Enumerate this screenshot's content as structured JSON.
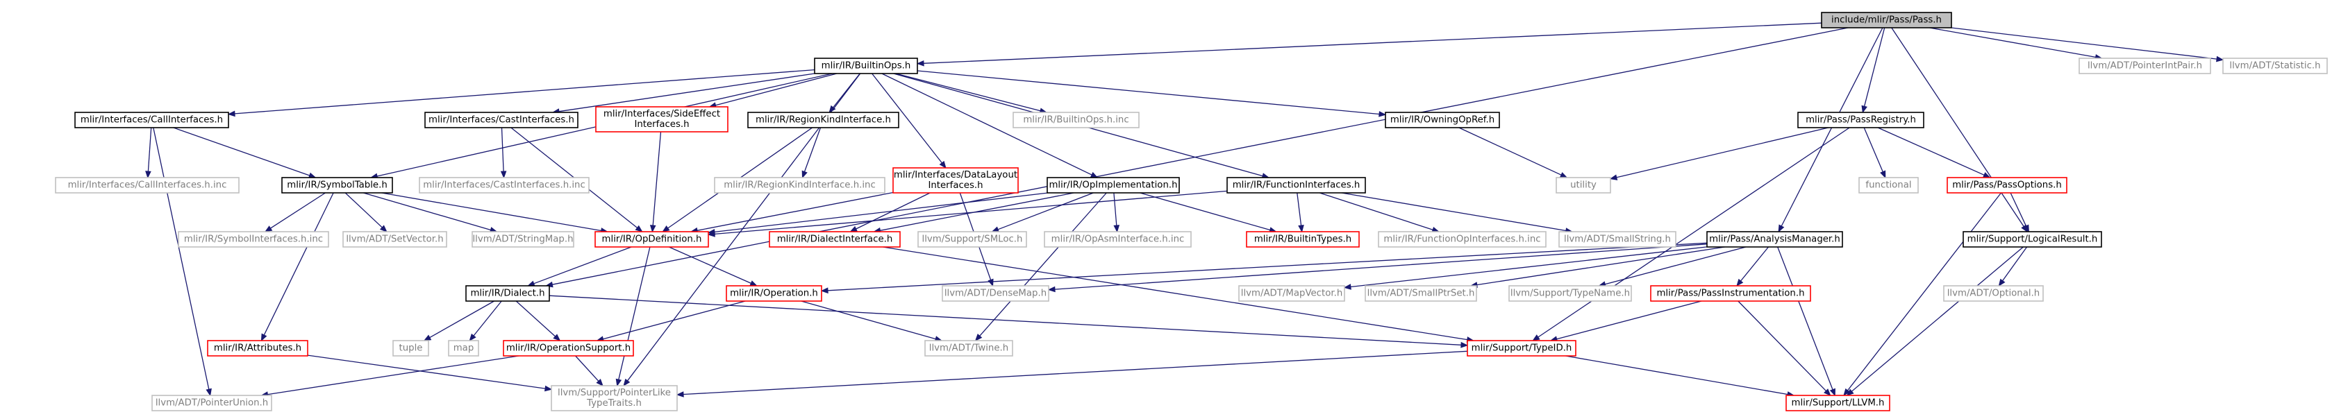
{
  "title": "include/mlir/Pass/Pass.h",
  "colors": {
    "edge": "#191970",
    "black": "#000000",
    "red": "#ff0000",
    "gray": "#bfbfbf",
    "root_fill": "#bfbfbf"
  },
  "nodes": [
    {
      "id": "pass",
      "label": "include/mlir/Pass/Pass.h",
      "style": "root"
    },
    {
      "id": "builtinops",
      "label": "mlir/IR/BuiltinOps.h",
      "style": "black"
    },
    {
      "id": "pointerintpair",
      "label": "llvm/ADT/PointerIntPair.h",
      "style": "gray"
    },
    {
      "id": "statistic",
      "label": "llvm/ADT/Statistic.h",
      "style": "gray"
    },
    {
      "id": "callinterfaces",
      "label": "mlir/Interfaces/CallInterfaces.h",
      "style": "black"
    },
    {
      "id": "castinterfaces",
      "label": "mlir/Interfaces/CastInterfaces.h",
      "style": "black"
    },
    {
      "id": "sideeffect",
      "label": "mlir/Interfaces/SideEffect\nInterfaces.h",
      "style": "red"
    },
    {
      "id": "regionkind",
      "label": "mlir/IR/RegionKindInterface.h",
      "style": "black"
    },
    {
      "id": "builtinopsinc",
      "label": "mlir/IR/BuiltinOps.h.inc",
      "style": "gray"
    },
    {
      "id": "owningopref",
      "label": "mlir/IR/OwningOpRef.h",
      "style": "black"
    },
    {
      "id": "passregistry",
      "label": "mlir/Pass/PassRegistry.h",
      "style": "black"
    },
    {
      "id": "callinterfacesinc",
      "label": "mlir/Interfaces/CallInterfaces.h.inc",
      "style": "gray"
    },
    {
      "id": "symboltable",
      "label": "mlir/IR/SymbolTable.h",
      "style": "black"
    },
    {
      "id": "castinterfacesinc",
      "label": "mlir/Interfaces/CastInterfaces.h.inc",
      "style": "gray"
    },
    {
      "id": "regionkindinc",
      "label": "mlir/IR/RegionKindInterface.h.inc",
      "style": "gray"
    },
    {
      "id": "datalayout",
      "label": "mlir/Interfaces/DataLayout\nInterfaces.h",
      "style": "red"
    },
    {
      "id": "opimplementation",
      "label": "mlir/IR/OpImplementation.h",
      "style": "black"
    },
    {
      "id": "functioninterfaces",
      "label": "mlir/IR/FunctionInterfaces.h",
      "style": "black"
    },
    {
      "id": "utility",
      "label": "utility",
      "style": "gray"
    },
    {
      "id": "functional",
      "label": "functional",
      "style": "gray"
    },
    {
      "id": "passoptions",
      "label": "mlir/Pass/PassOptions.h",
      "style": "red"
    },
    {
      "id": "symbolinterfacesinc",
      "label": "mlir/IR/SymbolInterfaces.h.inc",
      "style": "gray"
    },
    {
      "id": "setvector",
      "label": "llvm/ADT/SetVector.h",
      "style": "gray"
    },
    {
      "id": "stringmap",
      "label": "llvm/ADT/StringMap.h",
      "style": "gray"
    },
    {
      "id": "opdefinition",
      "label": "mlir/IR/OpDefinition.h",
      "style": "red"
    },
    {
      "id": "dialectinterface",
      "label": "mlir/IR/DialectInterface.h",
      "style": "red"
    },
    {
      "id": "smloc",
      "label": "llvm/Support/SMLoc.h",
      "style": "gray"
    },
    {
      "id": "opasminterfaceinc",
      "label": "mlir/IR/OpAsmInterface.h.inc",
      "style": "gray"
    },
    {
      "id": "builtintypes",
      "label": "mlir/IR/BuiltinTypes.h",
      "style": "red"
    },
    {
      "id": "functionopinterfacesinc",
      "label": "mlir/IR/FunctionOpInterfaces.h.inc",
      "style": "gray"
    },
    {
      "id": "smallstring",
      "label": "llvm/ADT/SmallString.h",
      "style": "gray"
    },
    {
      "id": "analysismanager",
      "label": "mlir/Pass/AnalysisManager.h",
      "style": "black"
    },
    {
      "id": "logicalresult",
      "label": "mlir/Support/LogicalResult.h",
      "style": "black"
    },
    {
      "id": "dialect",
      "label": "mlir/IR/Dialect.h",
      "style": "black"
    },
    {
      "id": "operation",
      "label": "mlir/IR/Operation.h",
      "style": "red"
    },
    {
      "id": "densemap",
      "label": "llvm/ADT/DenseMap.h",
      "style": "gray"
    },
    {
      "id": "mapvector",
      "label": "llvm/ADT/MapVector.h",
      "style": "gray"
    },
    {
      "id": "smallptrset",
      "label": "llvm/ADT/SmallPtrSet.h",
      "style": "gray"
    },
    {
      "id": "typename",
      "label": "llvm/Support/TypeName.h",
      "style": "gray"
    },
    {
      "id": "passinstrumentation",
      "label": "mlir/Pass/PassInstrumentation.h",
      "style": "red"
    },
    {
      "id": "optional",
      "label": "llvm/ADT/Optional.h",
      "style": "gray"
    },
    {
      "id": "tuple",
      "label": "tuple",
      "style": "gray"
    },
    {
      "id": "map",
      "label": "map",
      "style": "gray"
    },
    {
      "id": "attributes",
      "label": "mlir/IR/Attributes.h",
      "style": "red"
    },
    {
      "id": "operationsupport",
      "label": "mlir/IR/OperationSupport.h",
      "style": "red"
    },
    {
      "id": "twine",
      "label": "llvm/ADT/Twine.h",
      "style": "gray"
    },
    {
      "id": "typeid",
      "label": "mlir/Support/TypeID.h",
      "style": "red"
    },
    {
      "id": "llvm",
      "label": "mlir/Support/LLVM.h",
      "style": "red"
    },
    {
      "id": "pointerunion",
      "label": "llvm/ADT/PointerUnion.h",
      "style": "gray"
    },
    {
      "id": "pointerliketypetraits",
      "label": "llvm/Support/PointerLike\nTypeTraits.h",
      "style": "gray"
    }
  ],
  "edges": [
    [
      "pass",
      "builtinops"
    ],
    [
      "pass",
      "pointerintpair"
    ],
    [
      "pass",
      "statistic"
    ],
    [
      "pass",
      "passregistry"
    ],
    [
      "pass",
      "analysismanager"
    ],
    [
      "pass",
      "logicalresult"
    ],
    [
      "pass",
      "dialect"
    ],
    [
      "builtinops",
      "callinterfaces"
    ],
    [
      "builtinops",
      "castinterfaces"
    ],
    [
      "builtinops",
      "sideeffect"
    ],
    [
      "builtinops",
      "regionkind"
    ],
    [
      "builtinops",
      "builtinopsinc"
    ],
    [
      "builtinops",
      "owningopref"
    ],
    [
      "builtinops",
      "symboltable"
    ],
    [
      "builtinops",
      "datalayout"
    ],
    [
      "builtinops",
      "opimplementation"
    ],
    [
      "builtinops",
      "functioninterfaces"
    ],
    [
      "builtinops",
      "pointerliketypetraits"
    ],
    [
      "callinterfaces",
      "callinterfacesinc"
    ],
    [
      "callinterfaces",
      "symboltable"
    ],
    [
      "callinterfaces",
      "pointerunion"
    ],
    [
      "castinterfaces",
      "castinterfacesinc"
    ],
    [
      "castinterfaces",
      "opdefinition"
    ],
    [
      "sideeffect",
      "opdefinition"
    ],
    [
      "regionkind",
      "regionkindinc"
    ],
    [
      "regionkind",
      "opdefinition"
    ],
    [
      "owningopref",
      "utility"
    ],
    [
      "passregistry",
      "utility"
    ],
    [
      "passregistry",
      "functional"
    ],
    [
      "passregistry",
      "passoptions"
    ],
    [
      "passregistry",
      "typeid"
    ],
    [
      "symboltable",
      "symbolinterfacesinc"
    ],
    [
      "symboltable",
      "setvector"
    ],
    [
      "symboltable",
      "stringmap"
    ],
    [
      "symboltable",
      "opdefinition"
    ],
    [
      "symboltable",
      "attributes"
    ],
    [
      "datalayout",
      "opdefinition"
    ],
    [
      "datalayout",
      "dialectinterface"
    ],
    [
      "datalayout",
      "densemap"
    ],
    [
      "opimplementation",
      "opdefinition"
    ],
    [
      "opimplementation",
      "dialectinterface"
    ],
    [
      "opimplementation",
      "smloc"
    ],
    [
      "opimplementation",
      "opasminterfaceinc"
    ],
    [
      "opimplementation",
      "builtintypes"
    ],
    [
      "opimplementation",
      "twine"
    ],
    [
      "functioninterfaces",
      "opdefinition"
    ],
    [
      "functioninterfaces",
      "builtintypes"
    ],
    [
      "functioninterfaces",
      "functionopinterfacesinc"
    ],
    [
      "functioninterfaces",
      "smallstring"
    ],
    [
      "passoptions",
      "logicalresult"
    ],
    [
      "passoptions",
      "llvm"
    ],
    [
      "opdefinition",
      "dialect"
    ],
    [
      "opdefinition",
      "operation"
    ],
    [
      "opdefinition",
      "pointerliketypetraits"
    ],
    [
      "dialectinterface",
      "typeid"
    ],
    [
      "analysismanager",
      "operation"
    ],
    [
      "analysismanager",
      "densemap"
    ],
    [
      "analysismanager",
      "mapvector"
    ],
    [
      "analysismanager",
      "smallptrset"
    ],
    [
      "analysismanager",
      "typename"
    ],
    [
      "analysismanager",
      "passinstrumentation"
    ],
    [
      "analysismanager",
      "llvm"
    ],
    [
      "logicalresult",
      "optional"
    ],
    [
      "logicalresult",
      "llvm"
    ],
    [
      "dialect",
      "tuple"
    ],
    [
      "dialect",
      "map"
    ],
    [
      "dialect",
      "operationsupport"
    ],
    [
      "dialect",
      "typeid"
    ],
    [
      "operation",
      "operationsupport"
    ],
    [
      "operation",
      "twine"
    ],
    [
      "passinstrumentation",
      "typeid"
    ],
    [
      "passinstrumentation",
      "llvm"
    ],
    [
      "attributes",
      "pointerliketypetraits"
    ],
    [
      "operationsupport",
      "pointerunion"
    ],
    [
      "operationsupport",
      "pointerliketypetraits"
    ],
    [
      "typeid",
      "pointerliketypetraits"
    ],
    [
      "typeid",
      "llvm"
    ]
  ]
}
